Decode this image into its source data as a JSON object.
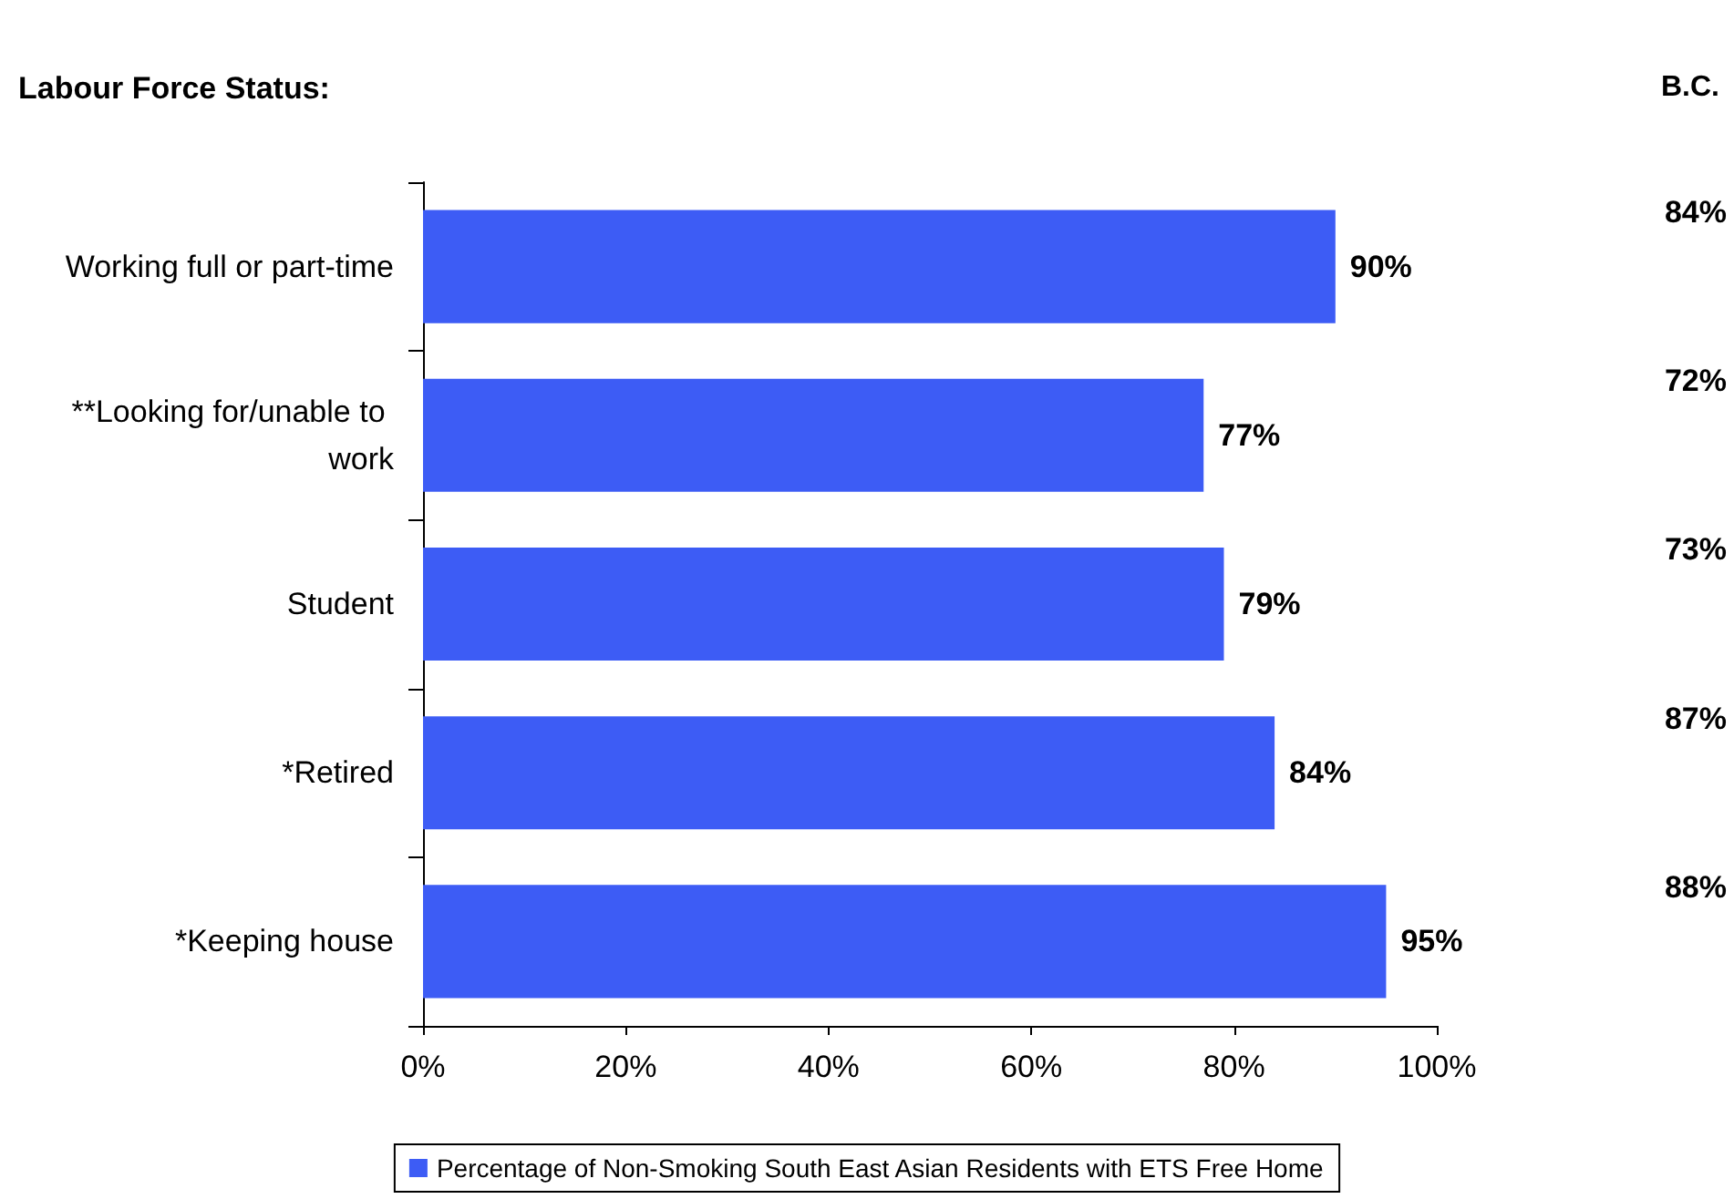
{
  "chart_data": {
    "type": "bar",
    "orientation": "horizontal",
    "categories": [
      "Working full or part-time",
      "**Looking for/unable to work",
      "Student",
      "*Retired",
      "*Keeping house"
    ],
    "series": [
      {
        "name": "Percentage of Non-Smoking South East Asian Residents with ETS Free Home",
        "color": "#3d5cf5",
        "values": [
          90,
          77,
          79,
          84,
          95
        ],
        "value_labels": [
          "90%",
          "77%",
          "79%",
          "84%",
          "95%"
        ]
      }
    ],
    "xlim": [
      0,
      100
    ],
    "xticks": [
      {
        "value": 0,
        "label": "0%"
      },
      {
        "value": 20,
        "label": "20%"
      },
      {
        "value": 40,
        "label": "40%"
      },
      {
        "value": 60,
        "label": "60%"
      },
      {
        "value": 80,
        "label": "80%"
      },
      {
        "value": 100,
        "label": "100%"
      }
    ],
    "annotations": [
      "Labour Force Status:",
      "B.C.",
      "84%",
      "72%",
      "73%",
      "87%",
      "88%"
    ],
    "grid": false,
    "legend": "bottom"
  }
}
